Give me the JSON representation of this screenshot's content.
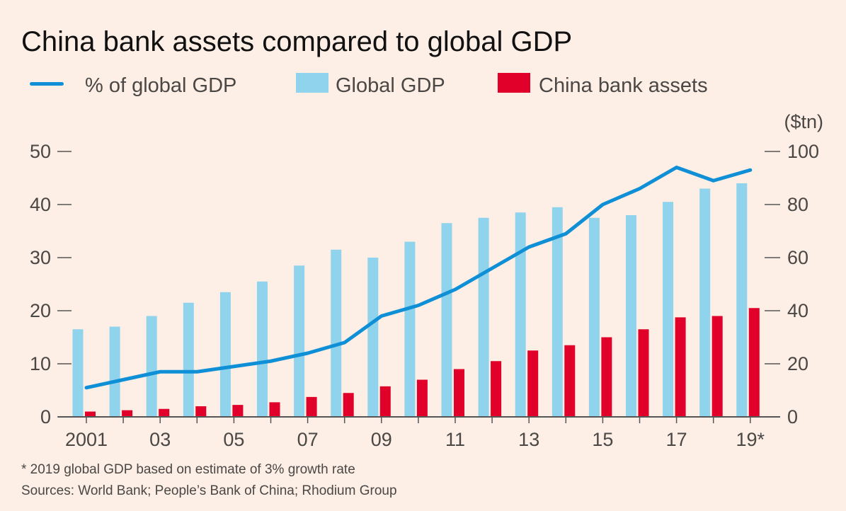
{
  "chart_data": {
    "type": "bar",
    "title": "China bank assets compared to global GDP",
    "right_axis_unit": "($tn)",
    "categories": [
      "2001",
      "2002",
      "2003",
      "2004",
      "2005",
      "2006",
      "2007",
      "2008",
      "2009",
      "2010",
      "2011",
      "2012",
      "2013",
      "2014",
      "2015",
      "2016",
      "2017",
      "2018",
      "2019*"
    ],
    "x_tick_labels": [
      "2001",
      "",
      "03",
      "",
      "05",
      "",
      "07",
      "",
      "09",
      "",
      "11",
      "",
      "13",
      "",
      "15",
      "",
      "17",
      "",
      "19*"
    ],
    "series": [
      {
        "name": "% of global GDP",
        "kind": "line",
        "axis": "left",
        "color": "#0f8fd6",
        "values": [
          5.5,
          7.0,
          8.5,
          8.5,
          9.5,
          10.5,
          12.0,
          14.0,
          19.0,
          21.0,
          24.0,
          28.0,
          32.0,
          34.5,
          40.0,
          43.0,
          47.0,
          44.5,
          46.5
        ]
      },
      {
        "name": "Global GDP",
        "kind": "bar",
        "axis": "right",
        "color": "#8fd4ec",
        "values": [
          33,
          34,
          38,
          43,
          47,
          51,
          57,
          63,
          60,
          66,
          73,
          75,
          77,
          79,
          75,
          76,
          81,
          86,
          88
        ]
      },
      {
        "name": "China bank assets",
        "kind": "bar",
        "axis": "right",
        "color": "#e0002a",
        "values": [
          2,
          2.5,
          3,
          4,
          4.5,
          5.5,
          7.5,
          9,
          11.5,
          14,
          18,
          21,
          25,
          27,
          30,
          33,
          37.5,
          38,
          41
        ]
      }
    ],
    "left_axis": {
      "ylim": [
        0,
        50
      ],
      "ticks": [
        0,
        10,
        20,
        30,
        40,
        50
      ]
    },
    "right_axis": {
      "ylim": [
        0,
        100
      ],
      "ticks": [
        0,
        20,
        40,
        60,
        80,
        100
      ]
    },
    "grid": false,
    "legend_position": "top"
  },
  "footnotes": [
    "* 2019 global GDP based on estimate of 3% growth rate",
    "Sources: World Bank; People’s Bank of China; Rhodium Group"
  ]
}
